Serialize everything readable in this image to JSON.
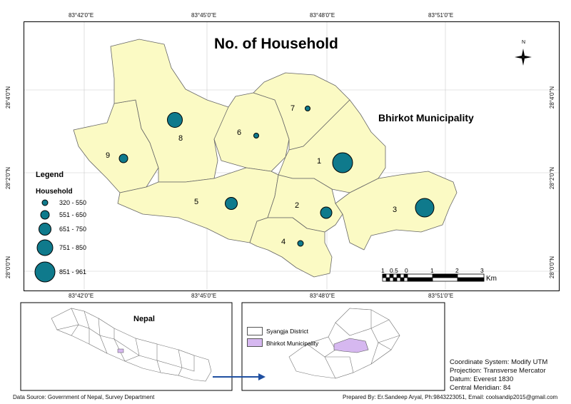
{
  "title": "No. of Household",
  "municipality_label": "Bhirkot Municipality",
  "top_ticks": [
    "83°42'0\"E",
    "83°45'0\"E",
    "83°48'0\"E",
    "83°51'0\"E"
  ],
  "bottom_ticks": [
    "83°42'0\"E",
    "83°45'0\"E",
    "83°48'0\"E",
    "83°51'0\"E"
  ],
  "left_ticks": [
    "28°4'0\"N",
    "28°2'0\"N",
    "28°0'0\"N"
  ],
  "right_ticks": [
    "28°4'0\"N",
    "28°2'0\"N",
    "28°0'0\"N"
  ],
  "wards": [
    {
      "label": "1",
      "households": "851 - 961"
    },
    {
      "label": "2",
      "households": "551 - 650"
    },
    {
      "label": "3",
      "households": "851 - 961"
    },
    {
      "label": "4",
      "households": "320 - 550"
    },
    {
      "label": "5",
      "households": "651 - 750"
    },
    {
      "label": "6",
      "households": "320 - 550"
    },
    {
      "label": "7",
      "households": "320 - 550"
    },
    {
      "label": "8",
      "households": "751 - 850"
    },
    {
      "label": "9",
      "households": "551 - 650"
    }
  ],
  "legend": {
    "title": "Legend",
    "subtitle": "Household",
    "classes": [
      "320 - 550",
      "551 - 650",
      "651 - 750",
      "751 - 850",
      "851 - 961"
    ]
  },
  "scale_bar": {
    "labels": [
      "1",
      "0.5",
      "0",
      "1",
      "2",
      "3"
    ],
    "unit": "Km"
  },
  "north_arrow": "N",
  "inset_nepal": {
    "label": "Nepal"
  },
  "inset_district": {
    "legend": [
      "Syangja District",
      "Bhirkot Municipality"
    ]
  },
  "info": {
    "coordinate_system": "Coordinate System: Modify UTM",
    "projection": "Projection: Transverse Mercator",
    "datum": "Datum: Everest 1830",
    "meridian": "Central Meridian: 84"
  },
  "footer": {
    "source": "Data Source: Government of Nepal, Survey Department",
    "prepared": "Prepared By: Er.Sandeep Aryal, Ph:9843223051, Email: coolsandip2015@gmail.com"
  },
  "colors": {
    "ward_fill": "#fbfac4",
    "symbol_fill": "#0f7a8c",
    "highlight": "#d6b8f0"
  }
}
